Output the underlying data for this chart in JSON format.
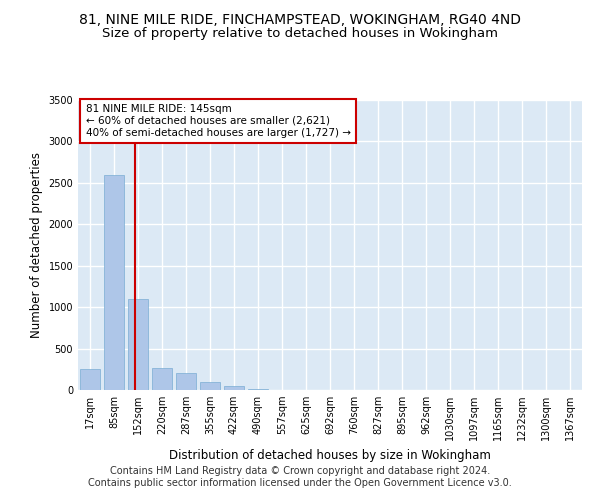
{
  "title_line1": "81, NINE MILE RIDE, FINCHAMPSTEAD, WOKINGHAM, RG40 4ND",
  "title_line2": "Size of property relative to detached houses in Wokingham",
  "xlabel": "Distribution of detached houses by size in Wokingham",
  "ylabel": "Number of detached properties",
  "bin_labels": [
    "17sqm",
    "85sqm",
    "152sqm",
    "220sqm",
    "287sqm",
    "355sqm",
    "422sqm",
    "490sqm",
    "557sqm",
    "625sqm",
    "692sqm",
    "760sqm",
    "827sqm",
    "895sqm",
    "962sqm",
    "1030sqm",
    "1097sqm",
    "1165sqm",
    "1232sqm",
    "1300sqm",
    "1367sqm"
  ],
  "bar_values": [
    250,
    2600,
    1100,
    270,
    200,
    100,
    50,
    15,
    0,
    0,
    0,
    0,
    0,
    0,
    0,
    0,
    0,
    0,
    0,
    0,
    0
  ],
  "bar_color": "#aec6e8",
  "bar_edge_color": "#7aadd4",
  "background_color": "#dce9f5",
  "grid_color": "#ffffff",
  "property_label": "81 NINE MILE RIDE: 145sqm",
  "annotation_line1": "← 60% of detached houses are smaller (2,621)",
  "annotation_line2": "40% of semi-detached houses are larger (1,727) →",
  "red_line_color": "#cc0000",
  "annotation_box_color": "#ffffff",
  "annotation_box_edge": "#cc0000",
  "ylim": [
    0,
    3500
  ],
  "yticks": [
    0,
    500,
    1000,
    1500,
    2000,
    2500,
    3000,
    3500
  ],
  "footer_line1": "Contains HM Land Registry data © Crown copyright and database right 2024.",
  "footer_line2": "Contains public sector information licensed under the Open Government Licence v3.0.",
  "title_fontsize": 10,
  "subtitle_fontsize": 9.5,
  "axis_label_fontsize": 8.5,
  "tick_fontsize": 7,
  "annotation_fontsize": 7.5,
  "footer_fontsize": 7
}
